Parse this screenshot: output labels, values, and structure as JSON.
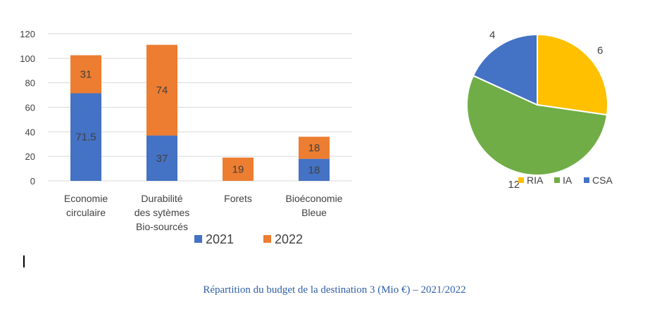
{
  "caption": "Répartition du budget de la destination 3 (Mio €) – 2021/2022",
  "chart_data": [
    {
      "type": "bar",
      "stacked": true,
      "categories": [
        [
          "Economie",
          "circulaire"
        ],
        [
          "Durabilité",
          "des sytèmes",
          "Bio-sourcés"
        ],
        [
          "Forets"
        ],
        [
          "Bioéconomie",
          "Bleue"
        ]
      ],
      "series": [
        {
          "name": "2021",
          "color": "#4472c4",
          "values": [
            71.5,
            37,
            0,
            18
          ],
          "labels": [
            "71.5",
            "37",
            "",
            "18"
          ]
        },
        {
          "name": "2022",
          "color": "#ed7d31",
          "values": [
            31,
            74,
            19,
            18
          ],
          "labels": [
            "31",
            "74",
            "19",
            "18"
          ]
        }
      ],
      "ylim": [
        0,
        120
      ],
      "yticks": [
        0,
        20,
        40,
        60,
        80,
        100,
        120
      ],
      "grid": true,
      "legend": "bottom"
    },
    {
      "type": "pie",
      "slices": [
        {
          "name": "RIA",
          "value": 6,
          "label": "6",
          "color": "#ffc000"
        },
        {
          "name": "IA",
          "value": 12,
          "label": "12",
          "color": "#70ad47"
        },
        {
          "name": "CSA",
          "value": 4,
          "label": "4",
          "color": "#4472c4"
        }
      ],
      "legend": "bottom"
    }
  ]
}
